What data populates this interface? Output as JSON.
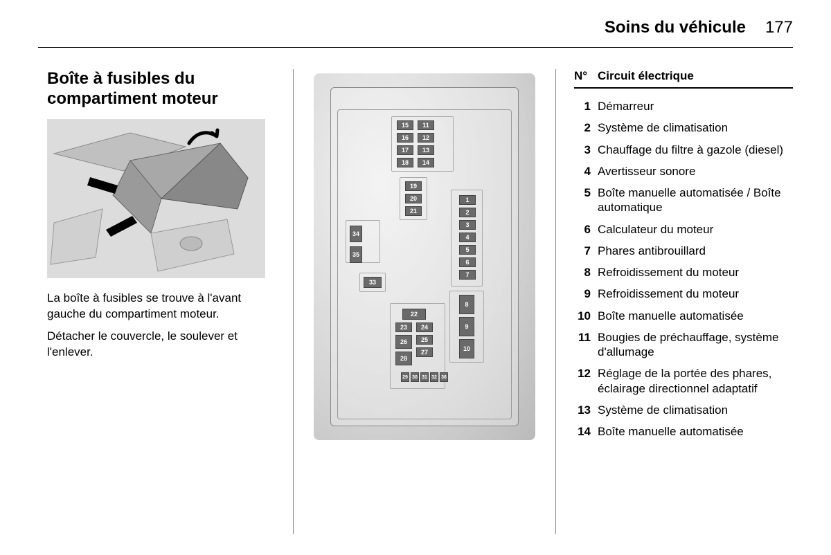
{
  "header": {
    "section": "Soins du véhicule",
    "page": "177"
  },
  "col1": {
    "title": "Boîte à fusibles du compartiment moteur",
    "paragraphs": [
      "La boîte à fusibles se trouve à l'avant gauche du compartiment moteur.",
      "Détacher le couvercle, le soulever et l'enlever."
    ]
  },
  "fuse_diagram": {
    "labels": [
      "1",
      "2",
      "3",
      "4",
      "5",
      "6",
      "7",
      "8",
      "9",
      "10",
      "11",
      "12",
      "13",
      "14",
      "15",
      "16",
      "17",
      "18",
      "19",
      "20",
      "21",
      "22",
      "23",
      "24",
      "25",
      "26",
      "27",
      "28",
      "29",
      "30",
      "31",
      "32",
      "33",
      "34",
      "35",
      "36"
    ]
  },
  "circuit_table": {
    "header_num": "N°",
    "header_label": "Circuit électrique",
    "rows": [
      {
        "n": "1",
        "label": "Démarreur"
      },
      {
        "n": "2",
        "label": "Système de climatisation"
      },
      {
        "n": "3",
        "label": "Chauffage du filtre à gazole (diesel)"
      },
      {
        "n": "4",
        "label": "Avertisseur sonore"
      },
      {
        "n": "5",
        "label": "Boîte manuelle automatisée / Boîte automatique"
      },
      {
        "n": "6",
        "label": "Calculateur du moteur"
      },
      {
        "n": "7",
        "label": "Phares antibrouillard"
      },
      {
        "n": "8",
        "label": "Refroidissement du moteur"
      },
      {
        "n": "9",
        "label": "Refroidissement du moteur"
      },
      {
        "n": "10",
        "label": "Boîte manuelle automatisée"
      },
      {
        "n": "11",
        "label": "Bougies de préchauffage, système d'allumage"
      },
      {
        "n": "12",
        "label": "Réglage de la portée des phares, éclairage directionnel adaptatif"
      },
      {
        "n": "13",
        "label": "Système de climatisation"
      },
      {
        "n": "14",
        "label": "Boîte manuelle automatisée"
      }
    ]
  },
  "colors": {
    "text": "#000000",
    "bg": "#ffffff",
    "fuse_fill": "#6a6a6a",
    "fuse_border": "#444444",
    "diagram_bg_light": "#f2f2f2",
    "diagram_bg_dark": "#bababa"
  }
}
